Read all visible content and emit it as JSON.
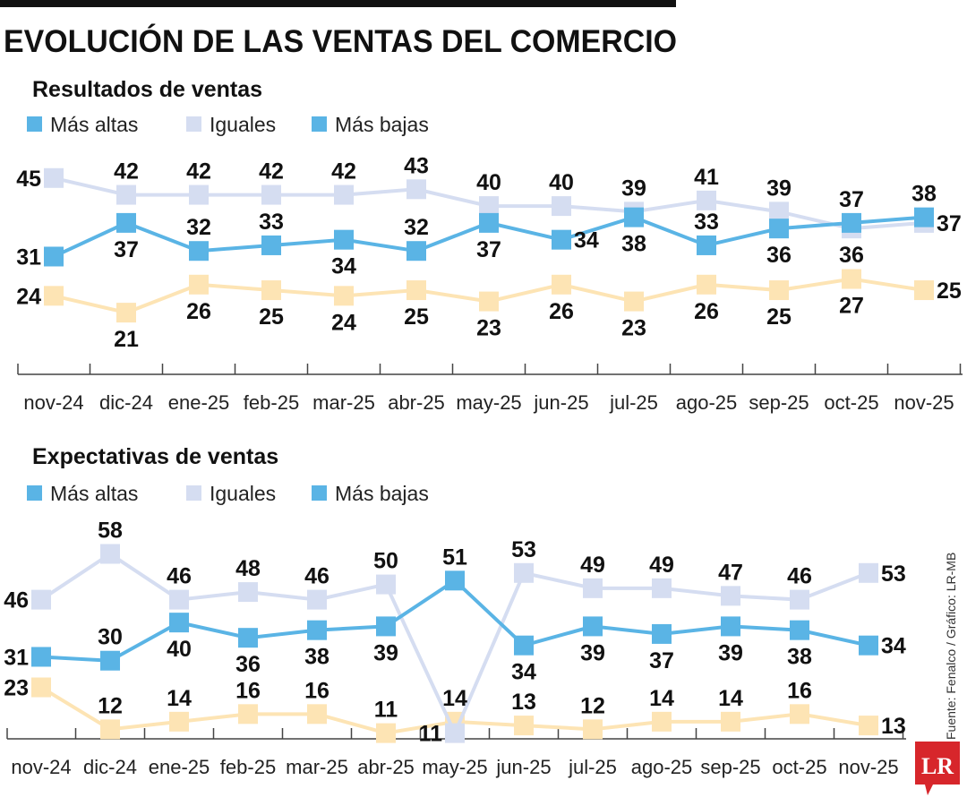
{
  "title": "EVOLUCIÓN DE LAS VENTAS DEL COMERCIO",
  "source": "Fuente: Fenalco / Gráfico: LR-MB",
  "logo": "LR",
  "colors": {
    "mas_altas": "#5ab4e5",
    "iguales": "#d5ddf1",
    "mas_bajas": "#fde4b4",
    "legend_bajas": "#5ab4e5",
    "logo_red": "#d7262b"
  },
  "legend": [
    "Más altas",
    "Iguales",
    "Más bajas"
  ],
  "chart_data": [
    {
      "type": "line",
      "title": "Resultados de ventas",
      "categories": [
        "nov-24",
        "dic-24",
        "ene-25",
        "feb-25",
        "mar-25",
        "abr-25",
        "may-25",
        "jun-25",
        "jul-25",
        "ago-25",
        "sep-25",
        "oct-25",
        "nov-25"
      ],
      "ylim": [
        10,
        48
      ],
      "series": [
        {
          "name": "Más altas",
          "values": [
            31,
            37,
            32,
            33,
            34,
            32,
            37,
            34,
            38,
            33,
            36,
            37,
            38
          ]
        },
        {
          "name": "Iguales",
          "values": [
            45,
            42,
            42,
            42,
            42,
            43,
            40,
            40,
            39,
            41,
            39,
            36,
            37
          ]
        },
        {
          "name": "Más bajas",
          "values": [
            24,
            21,
            26,
            25,
            24,
            25,
            23,
            26,
            23,
            26,
            25,
            27,
            25
          ]
        }
      ]
    },
    {
      "type": "line",
      "title": "Expectativas de ventas",
      "categories": [
        "nov-24",
        "dic-24",
        "ene-25",
        "feb-25",
        "mar-25",
        "abr-25",
        "may-25",
        "jun-25",
        "jul-25",
        "ago-25",
        "sep-25",
        "oct-25",
        "nov-25"
      ],
      "ylim": [
        9.5,
        60
      ],
      "series": [
        {
          "name": "Más altas",
          "values": [
            31,
            30,
            40,
            36,
            38,
            39,
            51,
            34,
            39,
            37,
            39,
            38,
            34
          ]
        },
        {
          "name": "Iguales",
          "values": [
            46,
            58,
            46,
            48,
            46,
            50,
            11,
            53,
            49,
            49,
            47,
            46,
            53
          ]
        },
        {
          "name": "Más bajas",
          "values": [
            23,
            12,
            14,
            16,
            16,
            11,
            14,
            13,
            12,
            14,
            14,
            16,
            13
          ]
        }
      ]
    }
  ]
}
